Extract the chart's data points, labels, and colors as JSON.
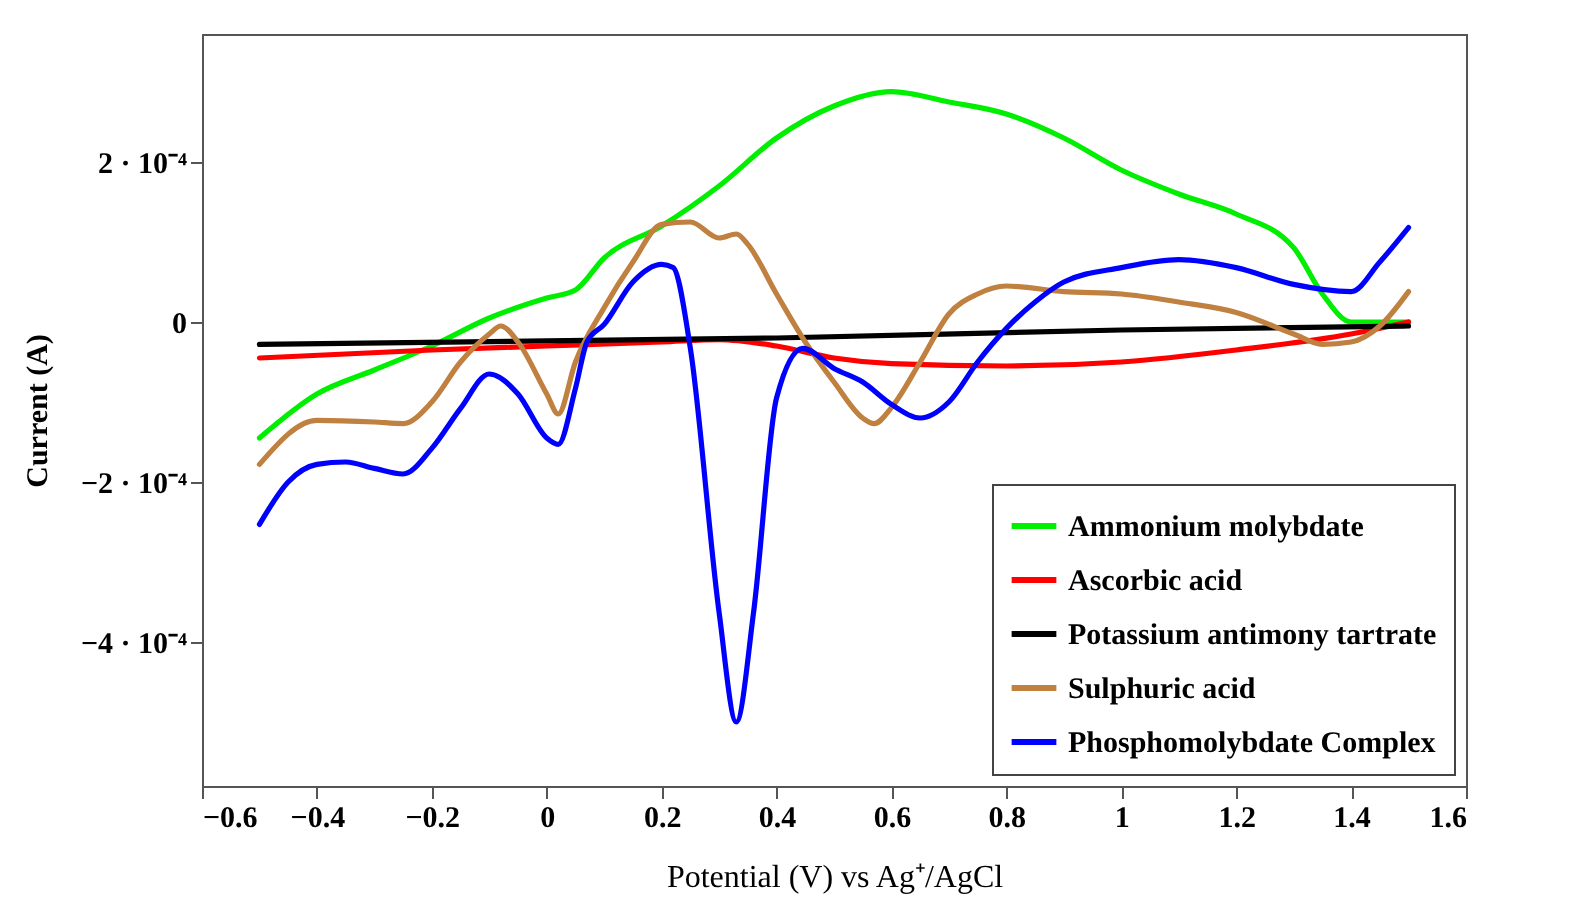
{
  "chart_data": {
    "type": "line",
    "xlabel": "Potential (V) vs Ag⁺/AgCl",
    "ylabel": "Current  (A)",
    "xlim": [
      -0.6,
      1.6
    ],
    "xticks": [
      -0.6,
      -0.4,
      -0.2,
      0,
      0.2,
      0.4,
      0.6,
      0.8,
      1,
      1.2,
      1.4,
      1.6
    ],
    "ylim": [
      -0.00058,
      0.00036
    ],
    "yticks": [
      {
        "value": -0.0004,
        "label": "−4 · 10⁻⁴"
      },
      {
        "value": -0.0002,
        "label": "−2 · 10⁻⁴"
      },
      0,
      {
        "value": 0.0002,
        "label": "2 · 10⁻⁴"
      }
    ],
    "grid": false,
    "legend": "bottom right",
    "marker": "none",
    "line_style": "solid",
    "series": [
      {
        "name": "Ammonium molybdate",
        "color": "#00ee00",
        "x": [
          -0.5,
          -0.4,
          -0.3,
          -0.2,
          -0.1,
          0,
          0.05,
          0.1,
          0.2,
          0.3,
          0.4,
          0.5,
          0.6,
          0.7,
          0.8,
          0.9,
          1.0,
          1.1,
          1.2,
          1.3,
          1.35,
          1.4,
          1.5
        ],
        "values": [
          -0.000145,
          -9e-05,
          -6e-05,
          -3e-05,
          5e-06,
          3e-05,
          4e-05,
          8e-05,
          0.00012,
          0.00017,
          0.00023,
          0.00027,
          0.000288,
          0.000275,
          0.00026,
          0.00023,
          0.00019,
          0.00016,
          0.000135,
          9.3e-05,
          3.5e-05,
          0.0,
          0.0
        ]
      },
      {
        "name": "Ascorbic acid",
        "color": "#ff0000",
        "x": [
          -0.5,
          -0.2,
          0,
          0.2,
          0.3,
          0.4,
          0.5,
          0.6,
          0.8,
          1.0,
          1.2,
          1.4,
          1.5
        ],
        "values": [
          -4.5e-05,
          -3.5e-05,
          -3e-05,
          -2.5e-05,
          -2.2e-05,
          -3e-05,
          -4.5e-05,
          -5.2e-05,
          -5.5e-05,
          -5e-05,
          -3.5e-05,
          -1.5e-05,
          0.0
        ]
      },
      {
        "name": "Potassium antimony tartrate",
        "color": "#000000",
        "x": [
          -0.5,
          0.4,
          1.0,
          1.5
        ],
        "values": [
          -2.8e-05,
          -2e-05,
          -1e-05,
          -5e-06
        ]
      },
      {
        "name": "Sulphuric acid",
        "color": "#bf8040",
        "x": [
          -0.5,
          -0.4,
          -0.3,
          -0.25,
          -0.2,
          -0.15,
          -0.1,
          -0.08,
          -0.05,
          0.0,
          0.02,
          0.05,
          0.1,
          0.15,
          0.2,
          0.25,
          0.3,
          0.33,
          0.35,
          0.4,
          0.45,
          0.5,
          0.55,
          0.57,
          0.6,
          0.65,
          0.7,
          0.75,
          0.8,
          0.9,
          1.0,
          1.1,
          1.2,
          1.3,
          1.35,
          1.4,
          1.45,
          1.5
        ],
        "values": [
          -0.000178,
          -0.000123,
          -0.000125,
          -0.000127,
          -0.0001,
          -5e-05,
          -1.5e-05,
          -5e-06,
          -2.5e-05,
          -9e-05,
          -0.000115,
          -5e-05,
          1.8e-05,
          7.5e-05,
          0.000122,
          0.000125,
          0.000105,
          0.00011,
          9.7e-05,
          3.5e-05,
          -2.5e-05,
          -7.5e-05,
          -0.00012,
          -0.000127,
          -0.000107,
          -5e-05,
          1e-05,
          3.5e-05,
          4.5e-05,
          3.8e-05,
          3.5e-05,
          2.5e-05,
          1.2e-05,
          -1.5e-05,
          -2.8e-05,
          -2.5e-05,
          -5e-06,
          3.8e-05
        ]
      },
      {
        "name": "Phosphomolybdate Complex",
        "color": "#0000ff",
        "x": [
          -0.5,
          -0.45,
          -0.4,
          -0.35,
          -0.3,
          -0.25,
          -0.2,
          -0.15,
          -0.1,
          -0.05,
          0.0,
          0.02,
          0.05,
          0.07,
          0.1,
          0.15,
          0.2,
          0.22,
          0.25,
          0.3,
          0.33,
          0.36,
          0.4,
          0.446,
          0.5,
          0.55,
          0.6,
          0.65,
          0.7,
          0.75,
          0.8,
          0.85,
          0.9,
          1.0,
          1.1,
          1.2,
          1.3,
          1.4,
          1.45,
          1.5
        ],
        "values": [
          -0.000253,
          -0.0002,
          -0.000178,
          -0.000175,
          -0.000183,
          -0.00019,
          -0.000158,
          -0.000108,
          -6.5e-05,
          -9e-05,
          -0.000145,
          -0.000153,
          -8.3e-05,
          -2.5e-05,
          -3e-06,
          5e-05,
          7.2e-05,
          6.8e-05,
          -3.3e-05,
          -0.000363,
          -0.0005,
          -0.000363,
          -9.5e-05,
          -3.3e-05,
          -5.8e-05,
          -7.5e-05,
          -0.000103,
          -0.00012,
          -0.0001,
          -5e-05,
          -8e-06,
          2.5e-05,
          5e-05,
          6.8e-05,
          7.8e-05,
          6.8e-05,
          4.7e-05,
          3.8e-05,
          7.5e-05,
          0.000118
        ]
      }
    ]
  }
}
